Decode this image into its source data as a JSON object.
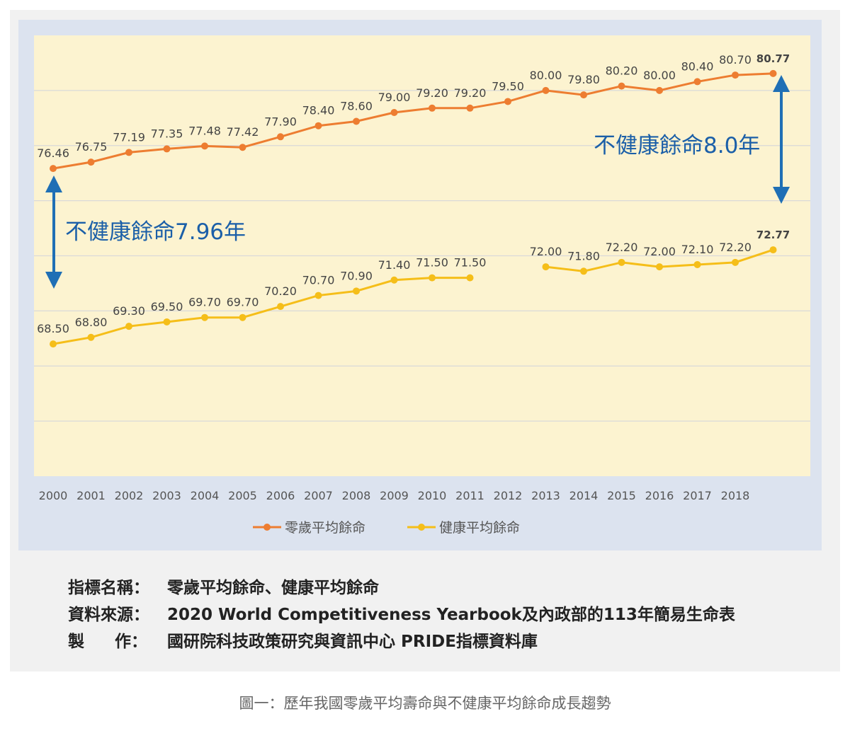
{
  "chart_data": {
    "type": "line",
    "categories": [
      "2000",
      "2001",
      "2002",
      "2003",
      "2004",
      "2005",
      "2006",
      "2007",
      "2008",
      "2009",
      "2010",
      "2011",
      "2012",
      "2013",
      "2014",
      "2015",
      "2016",
      "2017",
      "2018",
      ""
    ],
    "series": [
      {
        "name": "零歲平均餘命",
        "color": "#ED7D31",
        "values": [
          76.46,
          76.75,
          77.19,
          77.35,
          77.48,
          77.42,
          77.9,
          78.4,
          78.6,
          79.0,
          79.2,
          79.2,
          79.5,
          80.0,
          79.8,
          80.2,
          80.0,
          80.4,
          80.7,
          80.77
        ],
        "labels": [
          "76.46",
          "76.75",
          "77.19",
          "77.35",
          "77.48",
          "77.42",
          "77.90",
          "78.40",
          "78.60",
          "79.00",
          "79.20",
          "79.20",
          "79.50",
          "80.00",
          "79.80",
          "80.20",
          "80.00",
          "80.40",
          "80.70",
          "80.77"
        ]
      },
      {
        "name": "健康平均餘命",
        "color": "#F5BE19",
        "values": [
          68.5,
          68.8,
          69.3,
          69.5,
          69.7,
          69.7,
          70.2,
          70.7,
          70.9,
          71.4,
          71.5,
          71.5,
          null,
          72.0,
          71.8,
          72.2,
          72.0,
          72.1,
          72.2,
          72.77
        ],
        "labels": [
          "68.50",
          "68.80",
          "69.30",
          "69.50",
          "69.70",
          "69.70",
          "70.20",
          "70.70",
          "70.90",
          "71.40",
          "71.50",
          "71.50",
          "",
          "72.00",
          "71.80",
          "72.20",
          "72.00",
          "72.10",
          "72.20",
          "72.77"
        ]
      }
    ],
    "ylim": [
      62.5,
      82.5
    ],
    "grid": true,
    "legend": "bottom",
    "annotations": [
      "不健康餘命7.96年",
      "不健康餘命8.0年"
    ]
  },
  "info": {
    "indicator_label": "指標名稱",
    "indicator_value": "零歲平均餘命、健康平均餘命",
    "source_label": "資料來源",
    "source_value": "2020 World Competitiveness Yearbook及內政部的113年簡易生命表",
    "maker_label_1": "製",
    "maker_label_2": "作",
    "maker_value": "國研院科技政策研究與資訊中心 PRIDE指標資料庫",
    "colon": "："
  },
  "caption": "圖一：歷年我國零歲平均壽命與不健康平均餘命成長趨勢",
  "colors": {
    "plot_bg": "#fcf3d0",
    "frame_bg": "#dce3ef",
    "annotation": "#1b5fa8",
    "arrow": "#1f6fb5"
  }
}
